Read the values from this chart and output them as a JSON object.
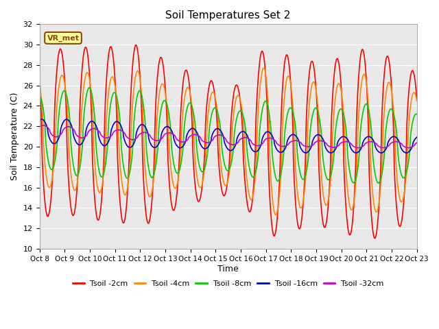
{
  "title": "Soil Temperatures Set 2",
  "xlabel": "Time",
  "ylabel": "Soil Temperature (C)",
  "ylim": [
    10,
    32
  ],
  "xlim": [
    0,
    360
  ],
  "background_color": "#ffffff",
  "plot_bg_color": "#e8e8e8",
  "annotation_text": "VR_met",
  "annotation_bg": "#ffff99",
  "annotation_border": "#8B4513",
  "series": {
    "Tsoil -2cm": {
      "color": "#ff0000",
      "lw": 1.2
    },
    "Tsoil -4cm": {
      "color": "#ff8800",
      "lw": 1.2
    },
    "Tsoil -8cm": {
      "color": "#00cc00",
      "lw": 1.2
    },
    "Tsoil -16cm": {
      "color": "#0000cc",
      "lw": 1.2
    },
    "Tsoil -32cm": {
      "color": "#cc00cc",
      "lw": 1.2
    }
  },
  "xtick_labels": [
    "Oct 8",
    "Oct 9",
    "Oct 10",
    "Oct 11",
    "Oct 12",
    "Oct 13",
    "Oct 14",
    "Oct 15",
    "Oct 16",
    "Oct 17",
    "Oct 18",
    "Oct 19",
    "Oct 20",
    "Oct 21",
    "Oct 22",
    "Oct 23"
  ],
  "grid_color": "#ffffff"
}
